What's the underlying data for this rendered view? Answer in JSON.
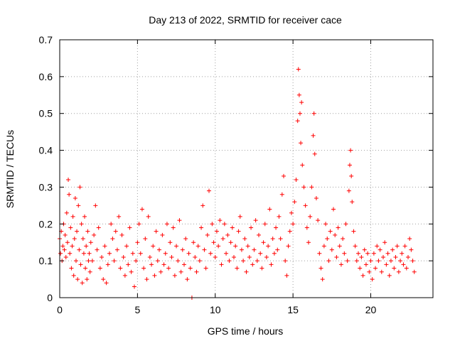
{
  "chart_data": {
    "type": "scatter",
    "title": "Day 213 of 2022, SRMTID for receiver cace",
    "xlabel": "GPS time / hours",
    "ylabel": "SRMTID / TECUs",
    "xlim": [
      0,
      24
    ],
    "ylim": [
      0,
      0.7
    ],
    "x_ticks": [
      0,
      5,
      10,
      15,
      20
    ],
    "y_ticks": [
      0,
      0.1,
      0.2,
      0.3,
      0.4,
      0.5,
      0.6,
      0.7
    ],
    "y_tick_labels": [
      "0",
      "0.1",
      "0.2",
      "0.3",
      "0.4",
      "0.5",
      "0.6",
      "0.7"
    ],
    "grid": true,
    "marker": "+",
    "colors": {
      "series": "#ff0000",
      "grid": "#a0a0a0",
      "axis": "#000000"
    },
    "series": [
      {
        "name": "SRMTID",
        "points": [
          [
            0.0,
            0.16
          ],
          [
            0.05,
            0.12
          ],
          [
            0.1,
            0.18
          ],
          [
            0.15,
            0.1
          ],
          [
            0.2,
            0.14
          ],
          [
            0.25,
            0.2
          ],
          [
            0.3,
            0.13
          ],
          [
            0.35,
            0.17
          ],
          [
            0.4,
            0.11
          ],
          [
            0.45,
            0.23
          ],
          [
            0.5,
            0.15
          ],
          [
            0.55,
            0.32
          ],
          [
            0.6,
            0.28
          ],
          [
            0.65,
            0.12
          ],
          [
            0.7,
            0.19
          ],
          [
            0.75,
            0.08
          ],
          [
            0.8,
            0.14
          ],
          [
            0.85,
            0.22
          ],
          [
            0.9,
            0.06
          ],
          [
            0.95,
            0.16
          ],
          [
            1.0,
            0.27
          ],
          [
            1.05,
            0.1
          ],
          [
            1.1,
            0.18
          ],
          [
            1.15,
            0.05
          ],
          [
            1.2,
            0.25
          ],
          [
            1.25,
            0.13
          ],
          [
            1.3,
            0.3
          ],
          [
            1.35,
            0.09
          ],
          [
            1.4,
            0.2
          ],
          [
            1.45,
            0.04
          ],
          [
            1.5,
            0.16
          ],
          [
            1.55,
            0.12
          ],
          [
            1.6,
            0.22
          ],
          [
            1.65,
            0.08
          ],
          [
            1.7,
            0.14
          ],
          [
            1.75,
            0.05
          ],
          [
            1.8,
            0.18
          ],
          [
            1.85,
            0.1
          ],
          [
            1.9,
            0.12
          ],
          [
            1.95,
            0.07
          ],
          [
            2.0,
            0.15
          ],
          [
            2.1,
            0.1
          ],
          [
            2.2,
            0.17
          ],
          [
            2.3,
            0.25
          ],
          [
            2.4,
            0.13
          ],
          [
            2.5,
            0.19
          ],
          [
            2.6,
            0.08
          ],
          [
            2.7,
            0.11
          ],
          [
            2.8,
            0.05
          ],
          [
            2.9,
            0.14
          ],
          [
            3.0,
            0.04
          ],
          [
            3.1,
            0.09
          ],
          [
            3.2,
            0.12
          ],
          [
            3.3,
            0.2
          ],
          [
            3.4,
            0.16
          ],
          [
            3.5,
            0.1
          ],
          [
            3.6,
            0.18
          ],
          [
            3.7,
            0.13
          ],
          [
            3.8,
            0.22
          ],
          [
            3.9,
            0.08
          ],
          [
            4.0,
            0.17
          ],
          [
            4.1,
            0.11
          ],
          [
            4.2,
            0.06
          ],
          [
            4.3,
            0.14
          ],
          [
            4.4,
            0.09
          ],
          [
            4.5,
            0.19
          ],
          [
            4.6,
            0.07
          ],
          [
            4.7,
            0.12
          ],
          [
            4.8,
            0.03
          ],
          [
            4.9,
            0.1
          ],
          [
            5.0,
            0.15
          ],
          [
            5.1,
            0.2
          ],
          [
            5.2,
            0.12
          ],
          [
            5.3,
            0.24
          ],
          [
            5.4,
            0.08
          ],
          [
            5.5,
            0.16
          ],
          [
            5.6,
            0.05
          ],
          [
            5.7,
            0.22
          ],
          [
            5.8,
            0.11
          ],
          [
            5.9,
            0.09
          ],
          [
            6.0,
            0.14
          ],
          [
            6.1,
            0.06
          ],
          [
            6.2,
            0.18
          ],
          [
            6.3,
            0.1
          ],
          [
            6.4,
            0.13
          ],
          [
            6.5,
            0.07
          ],
          [
            6.6,
            0.17
          ],
          [
            6.7,
            0.09
          ],
          [
            6.8,
            0.12
          ],
          [
            6.9,
            0.2
          ],
          [
            7.0,
            0.08
          ],
          [
            7.1,
            0.15
          ],
          [
            7.2,
            0.11
          ],
          [
            7.3,
            0.19
          ],
          [
            7.4,
            0.06
          ],
          [
            7.5,
            0.14
          ],
          [
            7.6,
            0.1
          ],
          [
            7.7,
            0.21
          ],
          [
            7.8,
            0.07
          ],
          [
            7.9,
            0.13
          ],
          [
            8.0,
            0.09
          ],
          [
            8.1,
            0.16
          ],
          [
            8.2,
            0.05
          ],
          [
            8.3,
            0.12
          ],
          [
            8.4,
            0.08
          ],
          [
            8.5,
            0.0
          ],
          [
            8.6,
            0.15
          ],
          [
            8.7,
            0.11
          ],
          [
            8.8,
            0.07
          ],
          [
            8.9,
            0.14
          ],
          [
            9.0,
            0.1
          ],
          [
            9.1,
            0.19
          ],
          [
            9.2,
            0.25
          ],
          [
            9.3,
            0.13
          ],
          [
            9.4,
            0.08
          ],
          [
            9.5,
            0.17
          ],
          [
            9.6,
            0.29
          ],
          [
            9.7,
            0.12
          ],
          [
            9.8,
            0.2
          ],
          [
            9.9,
            0.15
          ],
          [
            10.0,
            0.11
          ],
          [
            10.1,
            0.18
          ],
          [
            10.2,
            0.14
          ],
          [
            10.3,
            0.21
          ],
          [
            10.4,
            0.09
          ],
          [
            10.5,
            0.16
          ],
          [
            10.6,
            0.2
          ],
          [
            10.7,
            0.12
          ],
          [
            10.8,
            0.17
          ],
          [
            10.9,
            0.1
          ],
          [
            11.0,
            0.15
          ],
          [
            11.1,
            0.19
          ],
          [
            11.2,
            0.11
          ],
          [
            11.3,
            0.14
          ],
          [
            11.4,
            0.08
          ],
          [
            11.5,
            0.18
          ],
          [
            11.6,
            0.22
          ],
          [
            11.7,
            0.13
          ],
          [
            11.8,
            0.1
          ],
          [
            11.9,
            0.16
          ],
          [
            12.0,
            0.07
          ],
          [
            12.1,
            0.14
          ],
          [
            12.2,
            0.11
          ],
          [
            12.3,
            0.19
          ],
          [
            12.4,
            0.09
          ],
          [
            12.5,
            0.13
          ],
          [
            12.6,
            0.21
          ],
          [
            12.7,
            0.1
          ],
          [
            12.8,
            0.17
          ],
          [
            12.9,
            0.12
          ],
          [
            13.0,
            0.08
          ],
          [
            13.1,
            0.15
          ],
          [
            13.2,
            0.2
          ],
          [
            13.3,
            0.11
          ],
          [
            13.4,
            0.14
          ],
          [
            13.5,
            0.24
          ],
          [
            13.6,
            0.09
          ],
          [
            13.7,
            0.16
          ],
          [
            13.8,
            0.12
          ],
          [
            13.9,
            0.19
          ],
          [
            14.0,
            0.13
          ],
          [
            14.1,
            0.22
          ],
          [
            14.2,
            0.16
          ],
          [
            14.3,
            0.28
          ],
          [
            14.4,
            0.33
          ],
          [
            14.5,
            0.1
          ],
          [
            14.6,
            0.06
          ],
          [
            14.7,
            0.14
          ],
          [
            14.8,
            0.18
          ],
          [
            14.9,
            0.23
          ],
          [
            15.0,
            0.2
          ],
          [
            15.1,
            0.26
          ],
          [
            15.2,
            0.32
          ],
          [
            15.3,
            0.48
          ],
          [
            15.35,
            0.62
          ],
          [
            15.4,
            0.55
          ],
          [
            15.45,
            0.5
          ],
          [
            15.5,
            0.42
          ],
          [
            15.55,
            0.53
          ],
          [
            15.6,
            0.36
          ],
          [
            15.7,
            0.3
          ],
          [
            15.8,
            0.25
          ],
          [
            15.9,
            0.19
          ],
          [
            16.0,
            0.15
          ],
          [
            16.1,
            0.22
          ],
          [
            16.2,
            0.3
          ],
          [
            16.3,
            0.44
          ],
          [
            16.35,
            0.5
          ],
          [
            16.4,
            0.39
          ],
          [
            16.5,
            0.27
          ],
          [
            16.6,
            0.21
          ],
          [
            16.7,
            0.12
          ],
          [
            16.8,
            0.08
          ],
          [
            16.9,
            0.05
          ],
          [
            17.0,
            0.14
          ],
          [
            17.1,
            0.2
          ],
          [
            17.2,
            0.16
          ],
          [
            17.3,
            0.1
          ],
          [
            17.4,
            0.18
          ],
          [
            17.5,
            0.13
          ],
          [
            17.6,
            0.24
          ],
          [
            17.7,
            0.17
          ],
          [
            17.8,
            0.11
          ],
          [
            17.9,
            0.19
          ],
          [
            18.0,
            0.14
          ],
          [
            18.1,
            0.09
          ],
          [
            18.2,
            0.16
          ],
          [
            18.3,
            0.12
          ],
          [
            18.4,
            0.2
          ],
          [
            18.5,
            0.1
          ],
          [
            18.6,
            0.29
          ],
          [
            18.65,
            0.36
          ],
          [
            18.7,
            0.4
          ],
          [
            18.75,
            0.33
          ],
          [
            18.8,
            0.26
          ],
          [
            18.9,
            0.18
          ],
          [
            19.0,
            0.14
          ],
          [
            19.1,
            0.1
          ],
          [
            19.2,
            0.12
          ],
          [
            19.3,
            0.08
          ],
          [
            19.4,
            0.11
          ],
          [
            19.5,
            0.06
          ],
          [
            19.6,
            0.13
          ],
          [
            19.7,
            0.09
          ],
          [
            19.8,
            0.12
          ],
          [
            19.9,
            0.07
          ],
          [
            20.0,
            0.1
          ],
          [
            20.1,
            0.05
          ],
          [
            20.2,
            0.12
          ],
          [
            20.3,
            0.08
          ],
          [
            20.4,
            0.14
          ],
          [
            20.5,
            0.1
          ],
          [
            20.6,
            0.13
          ],
          [
            20.7,
            0.07
          ],
          [
            20.8,
            0.11
          ],
          [
            20.9,
            0.15
          ],
          [
            21.0,
            0.09
          ],
          [
            21.1,
            0.12
          ],
          [
            21.2,
            0.06
          ],
          [
            21.3,
            0.1
          ],
          [
            21.4,
            0.13
          ],
          [
            21.5,
            0.08
          ],
          [
            21.6,
            0.11
          ],
          [
            21.7,
            0.14
          ],
          [
            21.8,
            0.07
          ],
          [
            21.9,
            0.1
          ],
          [
            22.0,
            0.12
          ],
          [
            22.1,
            0.09
          ],
          [
            22.2,
            0.14
          ],
          [
            22.3,
            0.08
          ],
          [
            22.4,
            0.11
          ],
          [
            22.5,
            0.16
          ],
          [
            22.6,
            0.13
          ],
          [
            22.7,
            0.1
          ],
          [
            22.8,
            0.07
          ]
        ]
      }
    ]
  }
}
